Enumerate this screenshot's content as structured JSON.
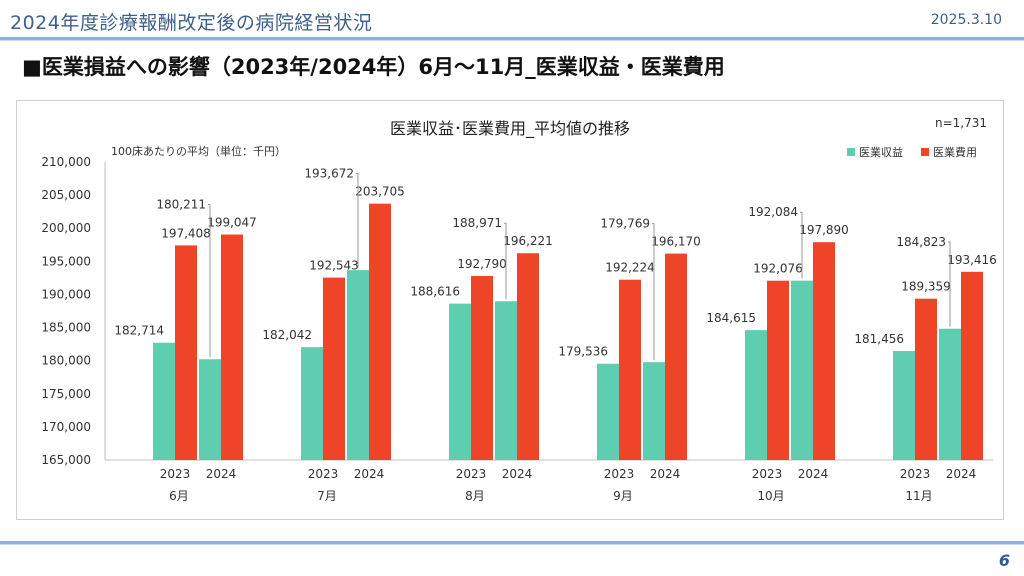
{
  "header": {
    "title": "2024年度診療報酬改定後の病院経営状況",
    "date": "2025.3.10"
  },
  "section_title": "■医業損益への影響（2023年/2024年）6月～11月_医業収益・医業費用",
  "page_number": "6",
  "colors": {
    "revenue": "#5ecdb0",
    "expense": "#ee4428",
    "accent": "#3e5f8c"
  },
  "chart_data": {
    "type": "bar",
    "title": "医業収益･医業費用_平均値の推移",
    "subtitle": "100床あたりの平均（単位：千円）",
    "n_label": "n=1,731",
    "legend_position": "top-right",
    "ylim": [
      165000,
      210000
    ],
    "ytick_step": 5000,
    "grid": false,
    "months": [
      "6月",
      "7月",
      "8月",
      "9月",
      "10月",
      "11月"
    ],
    "years": [
      "2023",
      "2024"
    ],
    "series": [
      {
        "name": "医業収益",
        "values": [
          [
            182714,
            180211
          ],
          [
            182042,
            193672
          ],
          [
            188616,
            188971
          ],
          [
            179536,
            179769
          ],
          [
            184615,
            192084
          ],
          [
            181456,
            184823
          ]
        ]
      },
      {
        "name": "医業費用",
        "values": [
          [
            197408,
            199047
          ],
          [
            192543,
            203705
          ],
          [
            192790,
            196221
          ],
          [
            192224,
            196170
          ],
          [
            192076,
            197890
          ],
          [
            189359,
            193416
          ]
        ]
      }
    ]
  }
}
